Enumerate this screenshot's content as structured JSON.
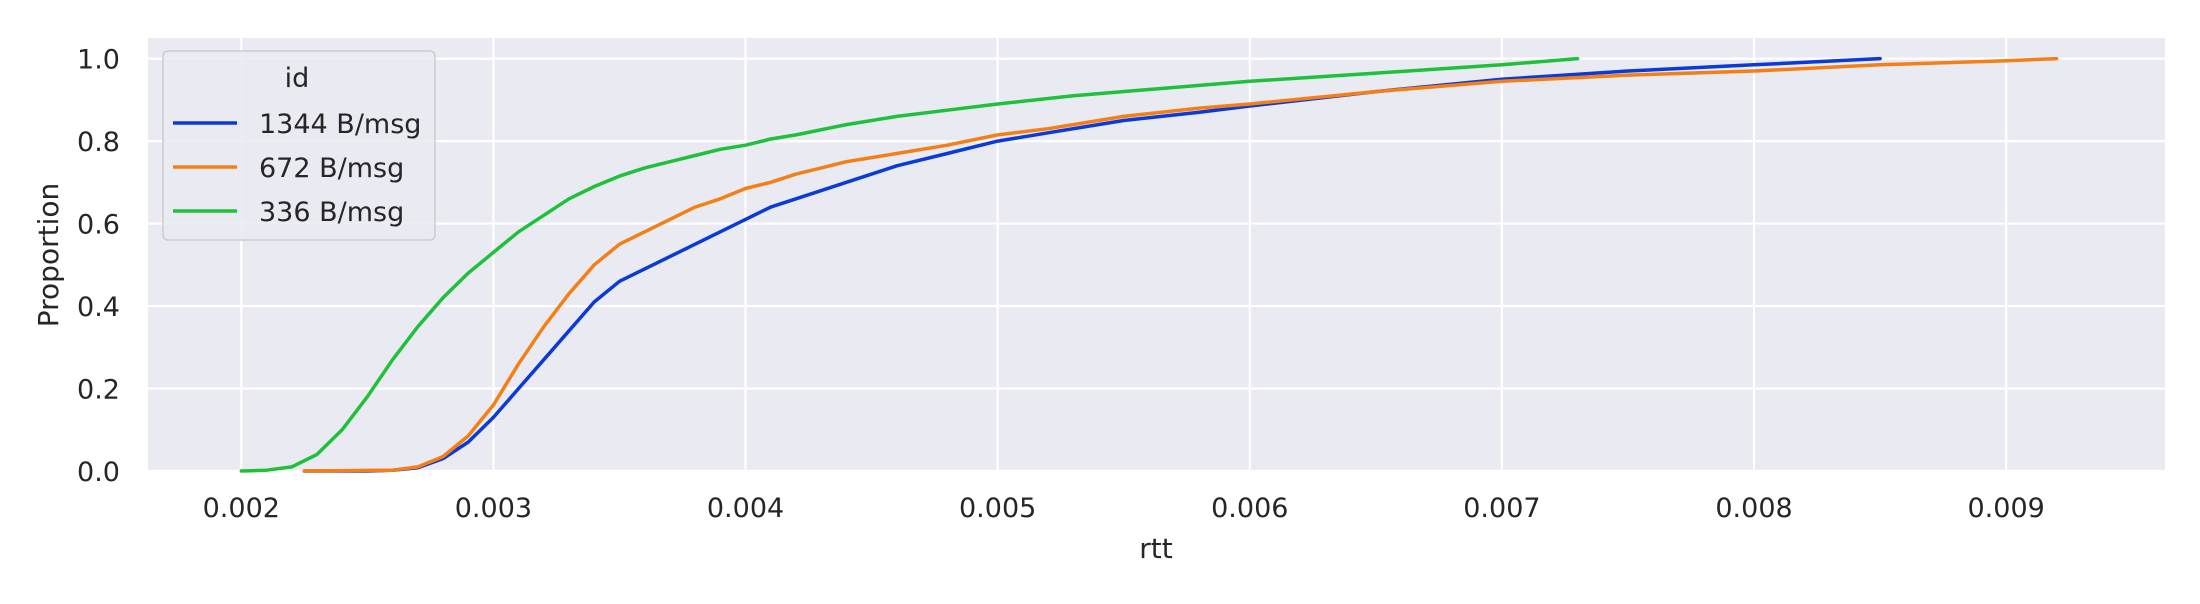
{
  "chart_data": {
    "type": "line",
    "title": "",
    "xlabel": "rtt",
    "ylabel": "Proportion",
    "xlim": [
      0.00163,
      0.00963
    ],
    "ylim": [
      0.0,
      1.05
    ],
    "x_ticks": [
      0.002,
      0.003,
      0.004,
      0.005,
      0.006,
      0.007,
      0.008,
      0.009
    ],
    "x_tick_labels": [
      "0.002",
      "0.003",
      "0.004",
      "0.005",
      "0.006",
      "0.007",
      "0.008",
      "0.009"
    ],
    "y_ticks": [
      0.0,
      0.2,
      0.4,
      0.6,
      0.8,
      1.0
    ],
    "y_tick_labels": [
      "0.0",
      "0.2",
      "0.4",
      "0.6",
      "0.8",
      "1.0"
    ],
    "grid": true,
    "legend": {
      "title": "id",
      "placement": "top-left"
    },
    "series": [
      {
        "name": "1344 B/msg",
        "color": "#0a3ad7",
        "x": [
          0.00225,
          0.0025,
          0.0026,
          0.0027,
          0.0028,
          0.0029,
          0.003,
          0.0031,
          0.0032,
          0.0033,
          0.0034,
          0.0035,
          0.0036,
          0.0037,
          0.0038,
          0.0039,
          0.004,
          0.0041,
          0.0042,
          0.0043,
          0.0044,
          0.0045,
          0.0046,
          0.0048,
          0.005,
          0.0052,
          0.0055,
          0.0058,
          0.006,
          0.0065,
          0.007,
          0.0075,
          0.008,
          0.0085
        ],
        "y": [
          0.0,
          0.0,
          0.002,
          0.008,
          0.03,
          0.07,
          0.13,
          0.2,
          0.27,
          0.34,
          0.41,
          0.46,
          0.49,
          0.52,
          0.55,
          0.58,
          0.61,
          0.64,
          0.66,
          0.68,
          0.7,
          0.72,
          0.74,
          0.77,
          0.8,
          0.82,
          0.85,
          0.87,
          0.885,
          0.92,
          0.95,
          0.97,
          0.985,
          1.0
        ]
      },
      {
        "name": "672 B/msg",
        "color": "#f57f17",
        "x": [
          0.00225,
          0.0026,
          0.0027,
          0.0028,
          0.0029,
          0.003,
          0.0031,
          0.0032,
          0.0033,
          0.0034,
          0.0035,
          0.0036,
          0.0037,
          0.0038,
          0.0039,
          0.004,
          0.0041,
          0.0042,
          0.0043,
          0.0044,
          0.0045,
          0.0046,
          0.0048,
          0.005,
          0.0052,
          0.0055,
          0.0058,
          0.006,
          0.0065,
          0.007,
          0.0075,
          0.008,
          0.0085,
          0.009,
          0.0092
        ],
        "y": [
          0.0,
          0.002,
          0.01,
          0.035,
          0.085,
          0.16,
          0.26,
          0.35,
          0.43,
          0.5,
          0.55,
          0.58,
          0.61,
          0.64,
          0.66,
          0.685,
          0.7,
          0.72,
          0.735,
          0.75,
          0.76,
          0.77,
          0.79,
          0.815,
          0.83,
          0.86,
          0.88,
          0.89,
          0.92,
          0.945,
          0.96,
          0.97,
          0.985,
          0.995,
          1.0
        ]
      },
      {
        "name": "336 B/msg",
        "color": "#1fc13b",
        "x": [
          0.002,
          0.0021,
          0.0022,
          0.0023,
          0.0024,
          0.0025,
          0.0026,
          0.0027,
          0.0028,
          0.0029,
          0.003,
          0.0031,
          0.0032,
          0.0033,
          0.0034,
          0.0035,
          0.0036,
          0.0037,
          0.0038,
          0.0039,
          0.004,
          0.0041,
          0.0042,
          0.0044,
          0.0046,
          0.0048,
          0.005,
          0.0053,
          0.0056,
          0.006,
          0.0065,
          0.007,
          0.0073
        ],
        "y": [
          0.0,
          0.002,
          0.01,
          0.04,
          0.1,
          0.18,
          0.27,
          0.35,
          0.42,
          0.48,
          0.53,
          0.58,
          0.62,
          0.66,
          0.69,
          0.715,
          0.735,
          0.75,
          0.765,
          0.78,
          0.79,
          0.805,
          0.815,
          0.84,
          0.86,
          0.875,
          0.89,
          0.91,
          0.925,
          0.945,
          0.965,
          0.985,
          1.0
        ]
      }
    ]
  }
}
